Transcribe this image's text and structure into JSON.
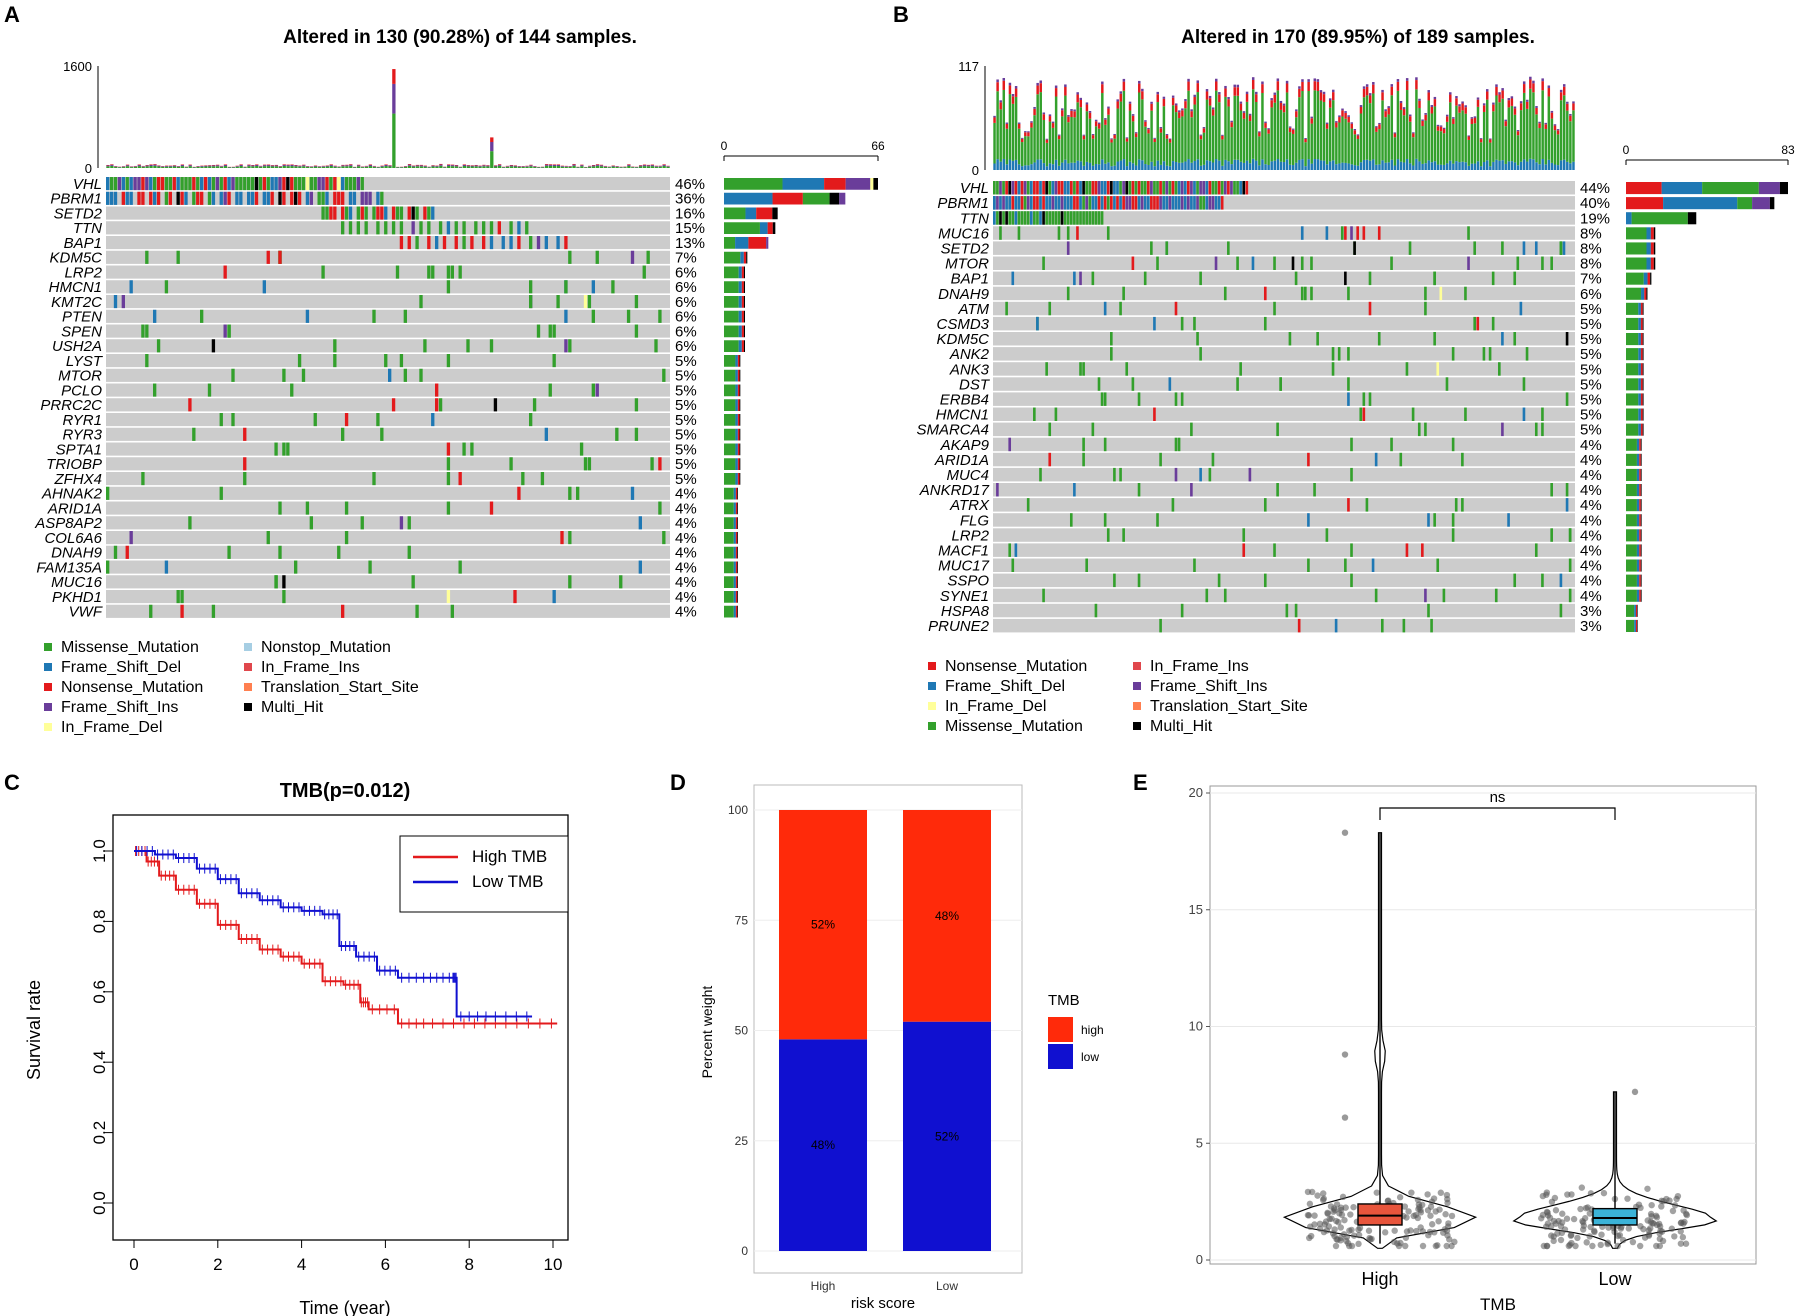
{
  "panels": {
    "A": {
      "label": "A",
      "title": "Altered in 130 (90.28%) of 144 samples.",
      "top_axis": {
        "max": "1600",
        "min": "0"
      },
      "side_axis": {
        "min": "0",
        "max": "66"
      },
      "genes": [
        {
          "name": "VHL",
          "pct": "46%"
        },
        {
          "name": "PBRM1",
          "pct": "36%"
        },
        {
          "name": "SETD2",
          "pct": "16%"
        },
        {
          "name": "TTN",
          "pct": "15%"
        },
        {
          "name": "BAP1",
          "pct": "13%"
        },
        {
          "name": "KDM5C",
          "pct": "7%"
        },
        {
          "name": "LRP2",
          "pct": "6%"
        },
        {
          "name": "HMCN1",
          "pct": "6%"
        },
        {
          "name": "KMT2C",
          "pct": "6%"
        },
        {
          "name": "PTEN",
          "pct": "6%"
        },
        {
          "name": "SPEN",
          "pct": "6%"
        },
        {
          "name": "USH2A",
          "pct": "6%"
        },
        {
          "name": "LYST",
          "pct": "5%"
        },
        {
          "name": "MTOR",
          "pct": "5%"
        },
        {
          "name": "PCLO",
          "pct": "5%"
        },
        {
          "name": "PRRC2C",
          "pct": "5%"
        },
        {
          "name": "RYR1",
          "pct": "5%"
        },
        {
          "name": "RYR3",
          "pct": "5%"
        },
        {
          "name": "SPTA1",
          "pct": "5%"
        },
        {
          "name": "TRIOBP",
          "pct": "5%"
        },
        {
          "name": "ZFHX4",
          "pct": "5%"
        },
        {
          "name": "AHNAK2",
          "pct": "4%"
        },
        {
          "name": "ARID1A",
          "pct": "4%"
        },
        {
          "name": "ASP8AP2",
          "pct": "4%"
        },
        {
          "name": "COL6A6",
          "pct": "4%"
        },
        {
          "name": "DNAH9",
          "pct": "4%"
        },
        {
          "name": "FAM135A",
          "pct": "4%"
        },
        {
          "name": "MUC16",
          "pct": "4%"
        },
        {
          "name": "PKHD1",
          "pct": "4%"
        },
        {
          "name": "VWF",
          "pct": "4%"
        }
      ],
      "legend": [
        "Missense_Mutation",
        "Frame_Shift_Del",
        "Nonsense_Mutation",
        "Frame_Shift_Ins",
        "In_Frame_Del",
        "Nonstop_Mutation",
        "In_Frame_Ins",
        "Translation_Start_Site",
        "Multi_Hit"
      ]
    },
    "B": {
      "label": "B",
      "title": "Altered in 170 (89.95%) of 189 samples.",
      "top_axis": {
        "max": "117",
        "min": "0"
      },
      "side_axis": {
        "min": "0",
        "max": "83"
      },
      "genes": [
        {
          "name": "VHL",
          "pct": "44%"
        },
        {
          "name": "PBRM1",
          "pct": "40%"
        },
        {
          "name": "TTN",
          "pct": "19%"
        },
        {
          "name": "MUC16",
          "pct": "8%"
        },
        {
          "name": "SETD2",
          "pct": "8%"
        },
        {
          "name": "MTOR",
          "pct": "8%"
        },
        {
          "name": "BAP1",
          "pct": "7%"
        },
        {
          "name": "DNAH9",
          "pct": "6%"
        },
        {
          "name": "ATM",
          "pct": "5%"
        },
        {
          "name": "CSMD3",
          "pct": "5%"
        },
        {
          "name": "KDM5C",
          "pct": "5%"
        },
        {
          "name": "ANK2",
          "pct": "5%"
        },
        {
          "name": "ANK3",
          "pct": "5%"
        },
        {
          "name": "DST",
          "pct": "5%"
        },
        {
          "name": "ERBB4",
          "pct": "5%"
        },
        {
          "name": "HMCN1",
          "pct": "5%"
        },
        {
          "name": "SMARCA4",
          "pct": "5%"
        },
        {
          "name": "AKAP9",
          "pct": "4%"
        },
        {
          "name": "ARID1A",
          "pct": "4%"
        },
        {
          "name": "MUC4",
          "pct": "4%"
        },
        {
          "name": "ANKRD17",
          "pct": "4%"
        },
        {
          "name": "ATRX",
          "pct": "4%"
        },
        {
          "name": "FLG",
          "pct": "4%"
        },
        {
          "name": "LRP2",
          "pct": "4%"
        },
        {
          "name": "MACF1",
          "pct": "4%"
        },
        {
          "name": "MUC17",
          "pct": "4%"
        },
        {
          "name": "SSPO",
          "pct": "4%"
        },
        {
          "name": "SYNE1",
          "pct": "4%"
        },
        {
          "name": "HSPA8",
          "pct": "3%"
        },
        {
          "name": "PRUNE2",
          "pct": "3%"
        }
      ],
      "legend": [
        "Nonsense_Mutation",
        "Frame_Shift_Del",
        "In_Frame_Del",
        "Missense_Mutation",
        "In_Frame_Ins",
        "Frame_Shift_Ins",
        "Translation_Start_Site",
        "Multi_Hit"
      ]
    },
    "C": {
      "label": "C",
      "title": "TMB(p=0.012)",
      "xlabel": "Time (year)",
      "ylabel": "Survival rate",
      "xticks": [
        "0",
        "2",
        "4",
        "6",
        "8",
        "10"
      ],
      "yticks": [
        "0.0",
        "0.2",
        "0.4",
        "0.6",
        "0.8",
        "1.0"
      ],
      "legend": [
        "High TMB",
        "Low TMB"
      ]
    },
    "D": {
      "label": "D",
      "ylabel": "Percent weight",
      "xlabel": "risk score",
      "yticks": [
        "0",
        "25",
        "50",
        "75",
        "100"
      ],
      "legend_title": "TMB",
      "legend": [
        "high",
        "low"
      ]
    },
    "E": {
      "label": "E",
      "xlabel": "TMB",
      "yticks": [
        "0",
        "5",
        "10",
        "15",
        "20"
      ],
      "sig": "ns",
      "categories": [
        "High",
        "Low"
      ]
    }
  },
  "colors": {
    "Missense_Mutation": "#33a02c",
    "Frame_Shift_Del": "#1f78b4",
    "Nonsense_Mutation": "#e31a1c",
    "Frame_Shift_Ins": "#6a3d9a",
    "In_Frame_Del": "#ffff99",
    "Nonstop_Mutation": "#a6cee3",
    "In_Frame_Ins": "#e0474c",
    "Translation_Start_Site": "#ff7f50",
    "Multi_Hit": "#000000",
    "grid_bg": "#cccccc",
    "high_tmb": "#e31a1c",
    "low_tmb": "#1010d0",
    "box_high": "#e8553c",
    "box_low": "#3bb3d8"
  },
  "chart_data": [
    {
      "type": "bar",
      "title": "Altered in 130 (90.28%) of 144 samples.",
      "panel": "A",
      "description_kind": "oncoplot",
      "genes": [
        "VHL",
        "PBRM1",
        "SETD2",
        "TTN",
        "BAP1",
        "KDM5C",
        "LRP2",
        "HMCN1",
        "KMT2C",
        "PTEN",
        "SPEN",
        "USH2A",
        "LYST",
        "MTOR",
        "PCLO",
        "PRRC2C",
        "RYR1",
        "RYR3",
        "SPTA1",
        "TRIOBP",
        "ZFHX4",
        "AHNAK2",
        "ARID1A",
        "ASP8AP2",
        "COL6A6",
        "DNAH9",
        "FAM135A",
        "MUC16",
        "PKHD1",
        "VWF"
      ],
      "altered_percent": [
        46,
        36,
        16,
        15,
        13,
        7,
        6,
        6,
        6,
        6,
        6,
        6,
        5,
        5,
        5,
        5,
        5,
        5,
        5,
        5,
        5,
        4,
        4,
        4,
        4,
        4,
        4,
        4,
        4,
        4
      ],
      "gene_counts": [
        66,
        52,
        23,
        22,
        19,
        10,
        9,
        9,
        9,
        9,
        9,
        9,
        7,
        7,
        7,
        7,
        7,
        7,
        7,
        7,
        7,
        6,
        6,
        6,
        6,
        6,
        6,
        6,
        6,
        6
      ],
      "n_samples": 144,
      "top_bar_ylim": [
        0,
        1600
      ],
      "side_bar_xlim": [
        0,
        66
      ]
    },
    {
      "type": "bar",
      "title": "Altered in 170 (89.95%) of 189 samples.",
      "panel": "B",
      "description_kind": "oncoplot",
      "genes": [
        "VHL",
        "PBRM1",
        "TTN",
        "MUC16",
        "SETD2",
        "MTOR",
        "BAP1",
        "DNAH9",
        "ATM",
        "CSMD3",
        "KDM5C",
        "ANK2",
        "ANK3",
        "DST",
        "ERBB4",
        "HMCN1",
        "SMARCA4",
        "AKAP9",
        "ARID1A",
        "MUC4",
        "ANKRD17",
        "ATRX",
        "FLG",
        "LRP2",
        "MACF1",
        "MUC17",
        "SSPO",
        "SYNE1",
        "HSPA8",
        "PRUNE2"
      ],
      "altered_percent": [
        44,
        40,
        19,
        8,
        8,
        8,
        7,
        6,
        5,
        5,
        5,
        5,
        5,
        5,
        5,
        5,
        5,
        4,
        4,
        4,
        4,
        4,
        4,
        4,
        4,
        4,
        4,
        4,
        3,
        3
      ],
      "gene_counts": [
        83,
        76,
        36,
        15,
        15,
        15,
        13,
        11,
        9,
        9,
        9,
        9,
        9,
        9,
        9,
        9,
        9,
        8,
        8,
        8,
        8,
        8,
        8,
        8,
        8,
        8,
        8,
        8,
        6,
        6
      ],
      "n_samples": 189,
      "top_bar_ylim": [
        0,
        117
      ],
      "side_bar_xlim": [
        0,
        83
      ]
    },
    {
      "type": "line",
      "panel": "C",
      "title": "TMB(p=0.012)",
      "xlabel": "Time (year)",
      "ylabel": "Survival rate",
      "xlim": [
        0,
        10
      ],
      "ylim": [
        0,
        1
      ],
      "series": [
        {
          "name": "High TMB",
          "x": [
            0,
            0.3,
            0.6,
            1.0,
            1.5,
            2.0,
            2.5,
            3.0,
            3.5,
            4.0,
            4.5,
            5.0,
            5.4,
            5.6,
            6.3,
            7.0,
            8.0,
            9.0,
            10.1
          ],
          "y": [
            1.0,
            0.97,
            0.93,
            0.89,
            0.85,
            0.79,
            0.75,
            0.72,
            0.7,
            0.68,
            0.63,
            0.62,
            0.57,
            0.55,
            0.51,
            0.51,
            0.51,
            0.51,
            0.51
          ]
        },
        {
          "name": "Low TMB",
          "x": [
            0,
            0.5,
            1.0,
            1.5,
            2.0,
            2.5,
            3.0,
            3.5,
            4.0,
            4.5,
            4.9,
            5.3,
            5.8,
            6.3,
            7.0,
            7.6,
            7.7,
            8.5,
            9.5
          ],
          "y": [
            1.0,
            0.99,
            0.98,
            0.95,
            0.92,
            0.88,
            0.86,
            0.84,
            0.83,
            0.82,
            0.73,
            0.7,
            0.66,
            0.64,
            0.64,
            0.64,
            0.53,
            0.53,
            0.53
          ]
        }
      ]
    },
    {
      "type": "bar",
      "panel": "D",
      "xlabel": "risk score",
      "ylabel": "Percent weight",
      "categories": [
        "High",
        "Low"
      ],
      "ylim": [
        0,
        100
      ],
      "series": [
        {
          "name": "low",
          "values": [
            48,
            52
          ],
          "labels": [
            "48%",
            "52%"
          ]
        },
        {
          "name": "high",
          "values": [
            52,
            48
          ],
          "labels": [
            "52%",
            "48%"
          ]
        }
      ]
    },
    {
      "type": "scatter",
      "panel": "E",
      "subtype": "violin-box",
      "xlabel": "TMB",
      "categories": [
        "High",
        "Low"
      ],
      "ylim": [
        0,
        20
      ],
      "median": [
        1.9,
        1.8
      ],
      "q1": [
        1.5,
        1.5
      ],
      "q3": [
        2.4,
        2.2
      ],
      "whisker_high": [
        18.3,
        7.2
      ],
      "outliers": [
        [
          18.3,
          8.8,
          6.1
        ],
        [
          7.2
        ]
      ],
      "significance": "ns"
    }
  ]
}
